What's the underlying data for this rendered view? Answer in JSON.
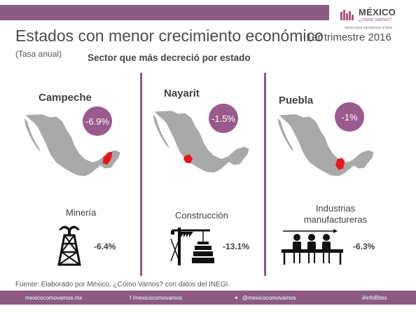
{
  "header": {
    "title": "Estados con menor crecimiento económico",
    "period": "1er trimestre 2016",
    "rate_note": "(Tasa anual)",
    "sector_heading": "Sector que más decreció por estado"
  },
  "logo": {
    "name": "MÉXICO",
    "sub": "¿cómo vamos?",
    "tagline": "metas para transformar al país"
  },
  "states": [
    {
      "name": "Campeche",
      "growth": "-6.9%",
      "sector": "Minería",
      "sector_change": "-6.4%",
      "icon": "oil-well-icon"
    },
    {
      "name": "Nayarit",
      "growth": "-1.5%",
      "sector": "Construcción",
      "sector_change": "-13.1%",
      "icon": "crane-icon"
    },
    {
      "name": "Puebla",
      "growth": "-1%",
      "sector": "Industrias manufactureras",
      "sector_change": "-6.3%",
      "icon": "factory-workers-icon"
    }
  ],
  "source": "Fuente: Elaborado por México, ¿Cómo Vamos? con datos del INEGI.",
  "footer": {
    "website": "mexicocomovamos.mx",
    "facebook": "f  /mexicocomovamos",
    "twitter": "@mexicocomovamos",
    "hashtag": "#InfoBites"
  },
  "colors": {
    "brand_purple": "#8c5a83",
    "badge_purple": "#9b5a8e",
    "map_gray": "#a9a9a9",
    "highlight_red": "#e8161b"
  }
}
